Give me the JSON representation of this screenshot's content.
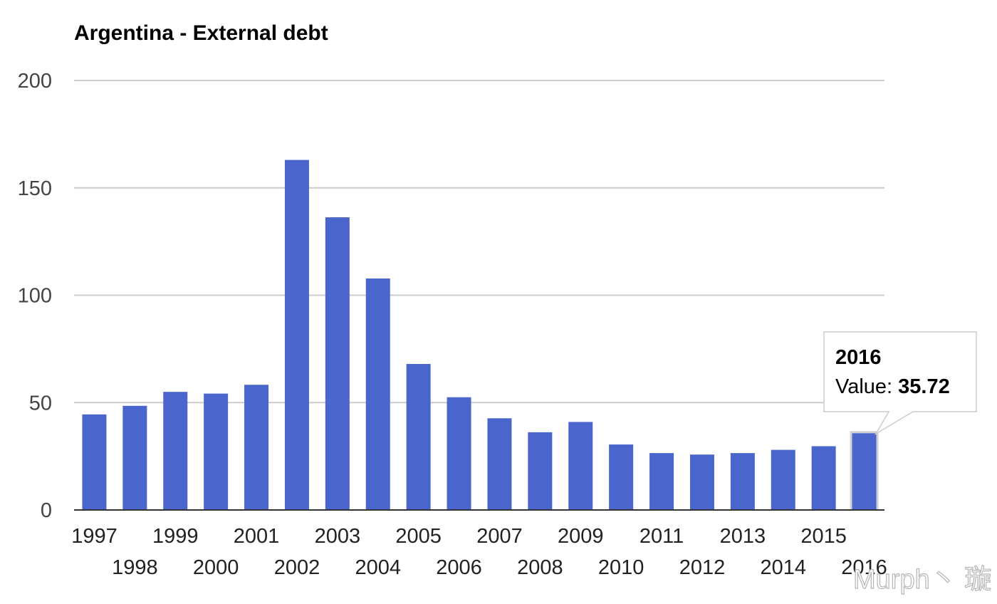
{
  "chart_data": {
    "type": "bar",
    "title": "Argentina - External debt",
    "categories": [
      "1997",
      "1998",
      "1999",
      "2000",
      "2001",
      "2002",
      "2003",
      "2004",
      "2005",
      "2006",
      "2007",
      "2008",
      "2009",
      "2010",
      "2011",
      "2012",
      "2013",
      "2014",
      "2015",
      "2016"
    ],
    "series": [
      {
        "values": [
          44.5,
          48.5,
          55,
          54.2,
          58.3,
          163,
          136.3,
          107.8,
          68,
          52.5,
          42.7,
          36.2,
          41,
          30.5,
          26.5,
          25.8,
          26.5,
          28,
          29.7,
          35.72
        ]
      }
    ],
    "ylim": [
      0,
      200
    ],
    "yticks": [
      0,
      50,
      100,
      150,
      200
    ],
    "grid": true,
    "color": "#4a66cc",
    "tooltip": {
      "year": "2016",
      "label": "Value: ",
      "value": "35.72"
    }
  },
  "watermark": "Murph丶 璇"
}
